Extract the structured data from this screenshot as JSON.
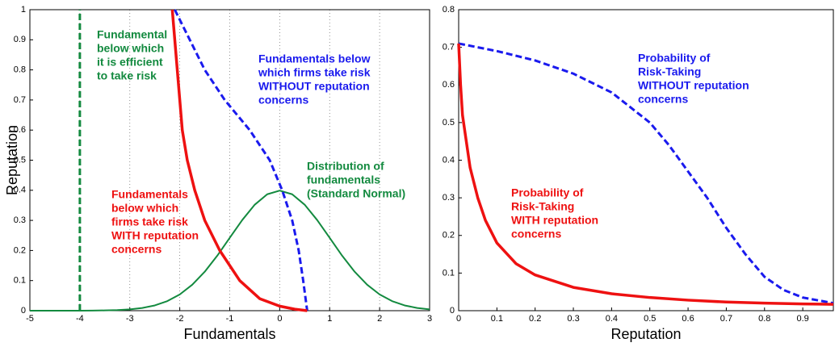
{
  "chart_data": [
    {
      "type": "line",
      "x_label": "Fundamentals",
      "y_label": "Reputation",
      "xlim": [
        -5,
        3
      ],
      "ylim": [
        0,
        1
      ],
      "xticks": [
        -5,
        -4,
        -3,
        -2,
        -1,
        0,
        1,
        2,
        3
      ],
      "yticks": [
        0,
        0.1,
        0.2,
        0.3,
        0.4,
        0.5,
        0.6,
        0.7,
        0.8,
        0.9,
        1
      ],
      "xgrid": true,
      "series": [
        {
          "color": "#138a3f",
          "style": "dashed",
          "x": [
            -4,
            -4
          ],
          "values": [
            0,
            1
          ]
        },
        {
          "color": "#138a3f",
          "style": "solid",
          "x": [
            -5,
            -4.75,
            -4.5,
            -4.25,
            -4,
            -3.75,
            -3.5,
            -3.25,
            -3,
            -2.75,
            -2.5,
            -2.25,
            -2,
            -1.75,
            -1.5,
            -1.25,
            -1,
            -0.75,
            -0.5,
            -0.25,
            0,
            0.25,
            0.5,
            0.75,
            1,
            1.25,
            1.5,
            1.75,
            2,
            2.25,
            2.5,
            2.75,
            3
          ],
          "values": [
            0,
            0,
            0,
            0,
            0.0001,
            0.0004,
            0.0009,
            0.002,
            0.0044,
            0.0091,
            0.0175,
            0.0317,
            0.054,
            0.0863,
            0.1295,
            0.1826,
            0.242,
            0.3011,
            0.3521,
            0.3867,
            0.3989,
            0.3867,
            0.3521,
            0.3011,
            0.242,
            0.1826,
            0.1295,
            0.0863,
            0.054,
            0.0317,
            0.0175,
            0.0091,
            0.0044
          ]
        },
        {
          "color": "#1a1aee",
          "style": "dashed",
          "x": [
            -2.1,
            -1.8,
            -1.5,
            -1.1,
            -0.6,
            -0.2,
            0.05,
            0.25,
            0.38,
            0.47,
            0.55
          ],
          "values": [
            1,
            0.9,
            0.8,
            0.7,
            0.6,
            0.5,
            0.4,
            0.3,
            0.2,
            0.1,
            0
          ]
        },
        {
          "color": "#ee1111",
          "style": "solid",
          "x": [
            -2.15,
            -2.1,
            -2.05,
            -2.0,
            -1.95,
            -1.85,
            -1.7,
            -1.5,
            -1.2,
            -0.8,
            -0.4,
            0,
            0.3,
            0.55
          ],
          "values": [
            1,
            0.9,
            0.8,
            0.7,
            0.6,
            0.5,
            0.4,
            0.3,
            0.2,
            0.1,
            0.04,
            0.015,
            0.005,
            0
          ]
        }
      ],
      "annotations": [
        {
          "color": "#138a3f",
          "lines": [
            "Fundamental",
            "below which",
            "it is efficient",
            "to take risk"
          ]
        },
        {
          "color": "#1a1aee",
          "lines": [
            "Fundamentals below",
            "which firms take risk",
            "WITHOUT reputation",
            "concerns"
          ]
        },
        {
          "color": "#138a3f",
          "lines": [
            "Distribution of",
            "fundamentals",
            "(Standard Normal)"
          ]
        },
        {
          "color": "#ee1111",
          "lines": [
            "Fundamentals",
            "below which",
            "firms take risk",
            "WITH reputation",
            "concerns"
          ]
        }
      ]
    },
    {
      "type": "line",
      "x_label": "Reputation",
      "xlim": [
        0,
        0.98
      ],
      "ylim": [
        0,
        0.8
      ],
      "xticks": [
        0,
        0.1,
        0.2,
        0.3,
        0.4,
        0.5,
        0.6,
        0.7,
        0.8,
        0.9
      ],
      "yticks": [
        0,
        0.1,
        0.2,
        0.3,
        0.4,
        0.5,
        0.6,
        0.7,
        0.8
      ],
      "xgrid": false,
      "series": [
        {
          "color": "#1a1aee",
          "style": "dashed",
          "x": [
            0,
            0.1,
            0.2,
            0.3,
            0.4,
            0.5,
            0.55,
            0.6,
            0.65,
            0.7,
            0.75,
            0.8,
            0.85,
            0.9,
            0.98
          ],
          "values": [
            0.71,
            0.69,
            0.665,
            0.63,
            0.58,
            0.5,
            0.44,
            0.37,
            0.3,
            0.22,
            0.15,
            0.09,
            0.055,
            0.035,
            0.02
          ]
        },
        {
          "color": "#ee1111",
          "style": "solid",
          "x": [
            0,
            0.005,
            0.01,
            0.02,
            0.03,
            0.05,
            0.07,
            0.1,
            0.15,
            0.2,
            0.3,
            0.4,
            0.5,
            0.6,
            0.7,
            0.8,
            0.9,
            0.98
          ],
          "values": [
            0.71,
            0.6,
            0.52,
            0.45,
            0.38,
            0.3,
            0.24,
            0.18,
            0.125,
            0.095,
            0.062,
            0.045,
            0.035,
            0.028,
            0.023,
            0.02,
            0.018,
            0.017
          ]
        }
      ],
      "annotations": [
        {
          "color": "#1a1aee",
          "lines": [
            "Probability of",
            "Risk-Taking",
            "WITHOUT reputation",
            "concerns"
          ]
        },
        {
          "color": "#ee1111",
          "lines": [
            "Probability of",
            "Risk-Taking",
            "WITH reputation",
            "concerns"
          ]
        }
      ]
    }
  ]
}
